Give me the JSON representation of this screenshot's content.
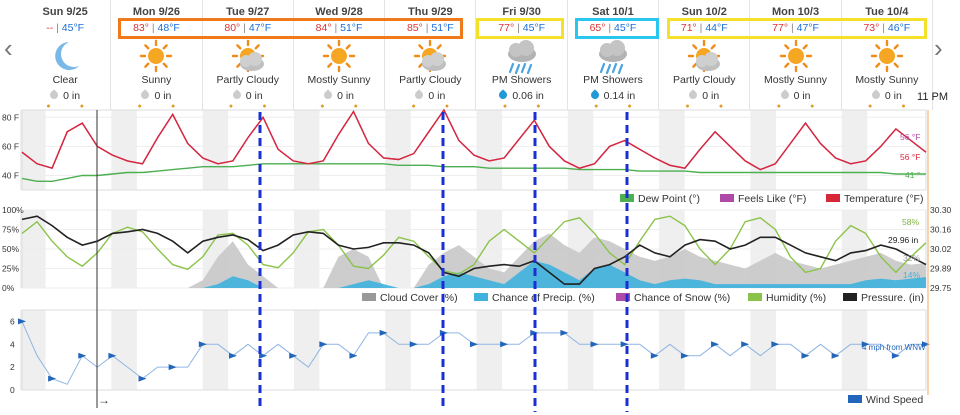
{
  "nav": {
    "prev": "‹",
    "next": "›"
  },
  "days": [
    {
      "name": "Sun 9/25",
      "hi": "--",
      "lo": "45°F",
      "icon": "crescent-moon-icon",
      "cond": "Clear",
      "precip": "0 in",
      "drop": "gray"
    },
    {
      "name": "Mon 9/26",
      "hi": "83°",
      "lo": "48°F",
      "icon": "sun-icon",
      "cond": "Sunny",
      "precip": "0 in",
      "drop": "gray"
    },
    {
      "name": "Tue 9/27",
      "hi": "80°",
      "lo": "47°F",
      "icon": "partly-cloudy-icon",
      "cond": "Partly Cloudy",
      "precip": "0 in",
      "drop": "gray"
    },
    {
      "name": "Wed 9/28",
      "hi": "84°",
      "lo": "51°F",
      "icon": "sun-icon",
      "cond": "Mostly Sunny",
      "precip": "0 in",
      "drop": "gray"
    },
    {
      "name": "Thu 9/29",
      "hi": "85°",
      "lo": "51°F",
      "icon": "partly-cloudy-icon",
      "cond": "Partly Cloudy",
      "precip": "0 in",
      "drop": "gray"
    },
    {
      "name": "Fri 9/30",
      "hi": "77°",
      "lo": "45°F",
      "icon": "rain-cloud-icon",
      "cond": "PM Showers",
      "precip": "0.06 in",
      "drop": "blue"
    },
    {
      "name": "Sat 10/1",
      "hi": "65°",
      "lo": "45°F",
      "icon": "rain-cloud-icon",
      "cond": "PM Showers",
      "precip": "0.14 in",
      "drop": "blue"
    },
    {
      "name": "Sun 10/2",
      "hi": "71°",
      "lo": "44°F",
      "icon": "partly-cloudy-icon",
      "cond": "Partly Cloudy",
      "precip": "0 in",
      "drop": "gray"
    },
    {
      "name": "Mon 10/3",
      "hi": "77°",
      "lo": "47°F",
      "icon": "sun-icon",
      "cond": "Mostly Sunny",
      "precip": "0 in",
      "drop": "gray"
    },
    {
      "name": "Tue 10/4",
      "hi": "73°",
      "lo": "46°F",
      "icon": "sun-icon",
      "cond": "Mostly Sunny",
      "precip": "0 in",
      "drop": "gray"
    }
  ],
  "hi_sep": "|",
  "time_label": "11 PM",
  "colors": {
    "temperature": "#d9273a",
    "dewpoint": "#4caf50",
    "feelslike": "#b04aa8",
    "humidity": "#8bc34a",
    "pressure": "#222222",
    "cloud": "#c8c8c8",
    "precip": "#3fb2dd",
    "wind": "#2266bb",
    "box_orange": "#f07a1a",
    "box_yellow": "#f5e12a",
    "box_cyan": "#29c6f0",
    "marker": "#1a2fd6"
  },
  "chart_data": [
    {
      "type": "line",
      "name": "temperature-panel",
      "ylim": [
        30,
        85
      ],
      "yticks": [
        "80 F",
        "60 F",
        "40 F"
      ],
      "legend": [
        "Dew Point (°)",
        "Feels Like (°F)",
        "Temperature (°F)"
      ],
      "end_labels": {
        "feels_like": "56 °F",
        "temperature": "56 °F",
        "dew_point": "41 °"
      },
      "series": [
        {
          "name": "Temperature (°F)",
          "values": [
            56,
            48,
            45,
            70,
            76,
            60,
            54,
            50,
            48,
            66,
            82,
            62,
            52,
            48,
            50,
            66,
            80,
            58,
            50,
            48,
            50,
            68,
            84,
            62,
            52,
            51,
            55,
            70,
            85,
            64,
            54,
            50,
            52,
            65,
            78,
            60,
            50,
            45,
            48,
            60,
            64,
            58,
            52,
            47,
            45,
            58,
            70,
            60,
            50,
            44,
            48,
            62,
            76,
            62,
            52,
            48,
            50,
            60,
            72,
            64,
            56
          ]
        },
        {
          "name": "Dew Point (°)",
          "values": [
            38,
            36,
            36,
            38,
            40,
            40,
            41,
            42,
            42,
            43,
            44,
            45,
            46,
            46,
            46,
            47,
            48,
            48,
            48,
            48,
            48,
            48,
            48,
            48,
            48,
            47,
            47,
            47,
            46,
            46,
            46,
            45,
            45,
            45,
            45,
            45,
            45,
            44,
            44,
            44,
            44,
            43,
            43,
            43,
            43,
            42,
            42,
            42,
            42,
            42,
            42,
            42,
            42,
            42,
            42,
            42,
            42,
            42,
            41,
            41,
            41
          ]
        },
        {
          "name": "Feels Like (°F)",
          "values": [
            56,
            48,
            45,
            70,
            76,
            60,
            54,
            50,
            48,
            66,
            82,
            62,
            52,
            48,
            50,
            66,
            80,
            58,
            50,
            48,
            50,
            68,
            84,
            62,
            52,
            51,
            55,
            70,
            85,
            64,
            54,
            50,
            52,
            65,
            78,
            60,
            50,
            45,
            48,
            60,
            64,
            58,
            52,
            47,
            45,
            58,
            70,
            60,
            50,
            44,
            48,
            62,
            76,
            62,
            52,
            48,
            50,
            60,
            72,
            64,
            56
          ]
        }
      ]
    },
    {
      "type": "line",
      "name": "humidity-pressure-panel",
      "ylim": [
        0,
        100
      ],
      "yticks_left": [
        "100%",
        "75%",
        "50%",
        "25%",
        "0%"
      ],
      "yticks_right": [
        "30.30",
        "30.16",
        "30.02",
        "29.89",
        "29.75"
      ],
      "legend": [
        "Cloud Cover (%)",
        "Chance of Precip. (%)",
        "Chance of Snow (%)",
        "Humidity (%)",
        "Pressure. (in)"
      ],
      "end_labels": {
        "humidity": "58%",
        "pressure": "29.96 in",
        "cloud": "32%",
        "precip": "14%"
      },
      "series": [
        {
          "name": "Humidity (%)",
          "values": [
            70,
            85,
            60,
            40,
            28,
            45,
            70,
            78,
            72,
            50,
            30,
            24,
            40,
            68,
            70,
            55,
            30,
            26,
            45,
            72,
            75,
            55,
            28,
            25,
            42,
            65,
            60,
            40,
            22,
            18,
            30,
            60,
            75,
            60,
            45,
            65,
            85,
            90,
            70,
            45,
            30,
            60,
            88,
            92,
            80,
            50,
            30,
            50,
            85,
            90,
            75,
            40,
            20,
            25,
            60,
            80,
            70,
            40,
            20,
            40,
            58
          ]
        },
        {
          "name": "Pressure. (in)",
          "values": [
            88,
            92,
            80,
            65,
            55,
            60,
            70,
            72,
            75,
            70,
            60,
            45,
            60,
            65,
            68,
            62,
            48,
            55,
            68,
            72,
            70,
            55,
            50,
            52,
            58,
            58,
            55,
            45,
            20,
            15,
            25,
            28,
            30,
            28,
            35,
            20,
            5,
            5,
            25,
            30,
            40,
            55,
            45,
            40,
            55,
            62,
            60,
            50,
            55,
            65,
            65,
            55,
            45,
            40,
            35,
            45,
            48,
            55,
            50,
            40,
            30
          ]
        },
        {
          "name": "Cloud Cover (%)",
          "values": [
            0,
            0,
            0,
            0,
            0,
            0,
            0,
            0,
            0,
            0,
            0,
            0,
            10,
            40,
            60,
            30,
            15,
            0,
            0,
            0,
            0,
            40,
            50,
            40,
            0,
            0,
            0,
            30,
            45,
            55,
            40,
            25,
            20,
            40,
            60,
            70,
            55,
            45,
            65,
            60,
            50,
            40,
            35,
            40,
            50,
            40,
            35,
            30,
            25,
            35,
            45,
            35,
            30,
            25,
            30,
            35,
            40,
            45,
            35,
            30,
            32
          ]
        },
        {
          "name": "Chance of Precip. (%)",
          "values": [
            0,
            0,
            0,
            0,
            0,
            0,
            0,
            0,
            0,
            0,
            0,
            0,
            0,
            5,
            15,
            10,
            0,
            0,
            0,
            0,
            0,
            0,
            5,
            10,
            5,
            0,
            0,
            5,
            15,
            20,
            15,
            10,
            5,
            20,
            35,
            30,
            20,
            10,
            25,
            30,
            20,
            10,
            5,
            10,
            12,
            10,
            5,
            5,
            5,
            5,
            5,
            5,
            5,
            5,
            5,
            5,
            10,
            12,
            10,
            12,
            14
          ]
        }
      ]
    },
    {
      "type": "line",
      "name": "wind-panel",
      "ylim": [
        0,
        7
      ],
      "yticks": [
        "6",
        "4",
        "2",
        "0"
      ],
      "legend": [
        "Wind Speed"
      ],
      "annotation": "4 mph from WNW",
      "arrow_label": "→",
      "series": [
        {
          "name": "Wind Speed",
          "values": [
            6,
            3,
            1,
            0.5,
            3,
            2,
            3,
            2,
            1,
            2,
            2,
            2,
            4,
            4,
            3,
            4,
            3,
            4,
            3,
            2,
            4,
            4,
            3,
            5,
            5,
            4,
            4,
            4,
            5,
            5,
            4,
            4,
            4,
            4,
            5,
            5,
            5,
            4,
            4,
            4,
            4,
            4,
            3,
            4,
            3,
            3,
            4,
            3,
            4,
            3,
            4,
            4,
            3,
            4,
            3,
            4,
            4,
            4,
            3,
            4,
            4
          ]
        }
      ]
    }
  ]
}
